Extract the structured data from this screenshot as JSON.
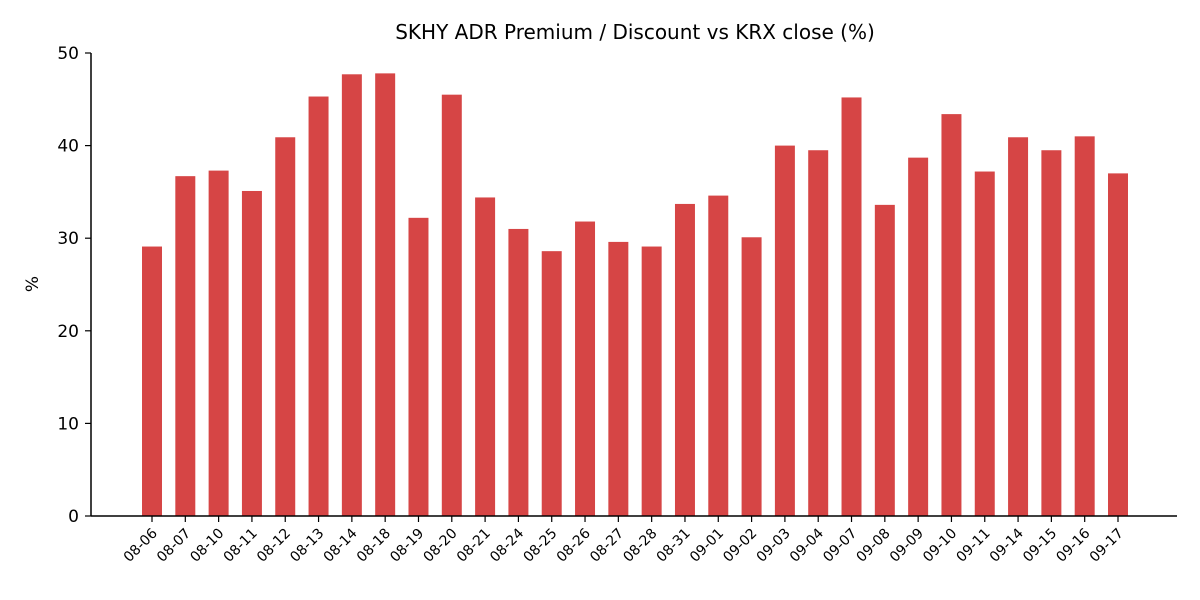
{
  "chart_data": {
    "type": "bar",
    "title": "SKHY ADR Premium / Discount vs KRX close (%)",
    "xlabel": "",
    "ylabel": "%",
    "ylim": [
      0,
      50
    ],
    "yticks": [
      0,
      10,
      20,
      30,
      40,
      50
    ],
    "grid": false,
    "bar_color": "#d64545",
    "categories": [
      "08-06",
      "08-07",
      "08-10",
      "08-11",
      "08-12",
      "08-13",
      "08-14",
      "08-18",
      "08-19",
      "08-20",
      "08-21",
      "08-24",
      "08-25",
      "08-26",
      "08-27",
      "08-28",
      "08-31",
      "09-01",
      "09-02",
      "09-03",
      "09-04",
      "09-07",
      "09-08",
      "09-09",
      "09-10",
      "09-11",
      "09-14",
      "09-15",
      "09-16",
      "09-17"
    ],
    "values": [
      29.1,
      36.7,
      37.3,
      35.1,
      40.9,
      45.3,
      47.7,
      47.8,
      32.2,
      45.5,
      34.4,
      31.0,
      28.6,
      31.8,
      29.6,
      29.1,
      33.7,
      34.6,
      30.1,
      40.0,
      39.5,
      45.2,
      33.6,
      38.7,
      43.4,
      37.2,
      40.9,
      39.5,
      41.0,
      37.0
    ]
  }
}
